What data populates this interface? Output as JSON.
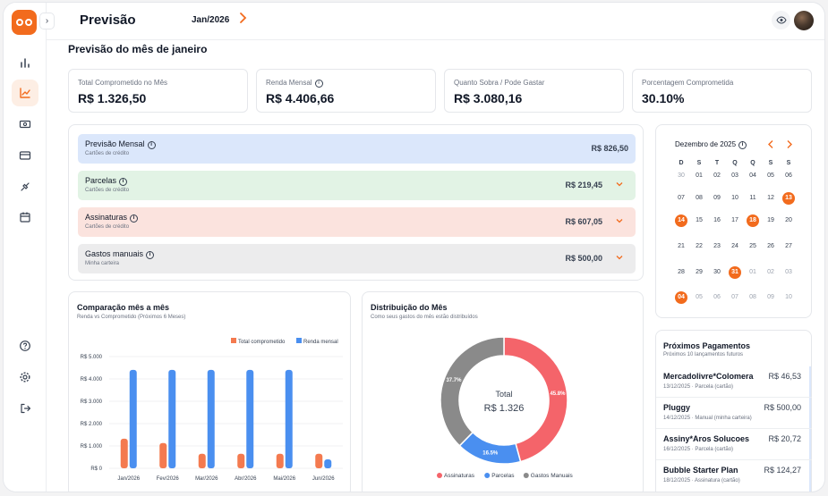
{
  "header": {
    "title": "Previsão",
    "month": "Jan/2026"
  },
  "page_title": "Previsão do mês de janeiro",
  "kpis": [
    {
      "label": "Total Comprometido no Mês",
      "value": "R$ 1.326,50"
    },
    {
      "label": "Renda Mensal",
      "value": "R$ 4.406,66"
    },
    {
      "label": "Quanto Sobra / Pode Gastar",
      "value": "R$ 3.080,16"
    },
    {
      "label": "Porcentagem Comprometida",
      "value": "30.10%"
    }
  ],
  "forecast": [
    {
      "title": "Previsão Mensal",
      "sub": "Cartões de crédito",
      "amount": "R$ 826,50",
      "color": "#dbe7fb"
    },
    {
      "title": "Parcelas",
      "sub": "Cartões de crédito",
      "amount": "R$ 219,45",
      "color": "#e2f3e5"
    },
    {
      "title": "Assinaturas",
      "sub": "Cartões de crédito",
      "amount": "R$ 607,05",
      "color": "#fbe3de"
    },
    {
      "title": "Gastos manuais",
      "sub": "Minha carteira",
      "amount": "R$ 500,00",
      "color": "#ececed"
    }
  ],
  "comparison": {
    "title": "Comparação mês a mês",
    "subtitle": "Renda vs Comprometido (Próximos 6 Meses)"
  },
  "distribution": {
    "title": "Distribuição do Mês",
    "subtitle": "Como seus gastos do mês estão distribuídos",
    "center_label": "Total",
    "center_value": "R$ 1.326"
  },
  "chart_data": [
    {
      "type": "bar",
      "categories": [
        "Jan/2026",
        "Fev/2026",
        "Mar/2026",
        "Abr/2026",
        "Mai/2026",
        "Jun/2026"
      ],
      "series": [
        {
          "name": "Total comprometido",
          "color": "#f47a4f",
          "values": [
            1326.5,
            1130,
            650,
            650,
            650,
            650
          ]
        },
        {
          "name": "Renda mensal",
          "color": "#4a8ff0",
          "values": [
            4406.66,
            4406.66,
            4406.66,
            4406.66,
            4406.66,
            400
          ]
        }
      ],
      "y_ticks": [
        "R$ 5.000",
        "R$ 4.000",
        "R$ 3.000",
        "R$ 2.000",
        "R$ 1.000",
        "R$ 0"
      ],
      "ylim": [
        0,
        5000
      ],
      "grid": true,
      "legend": "top-right"
    },
    {
      "type": "pie",
      "slices": [
        {
          "name": "Assinaturas",
          "value": 45.8,
          "label": "45.8%",
          "color": "#f4646a"
        },
        {
          "name": "Parcelas",
          "value": 16.5,
          "label": "16.5%",
          "color": "#4a8ff0"
        },
        {
          "name": "Gastos Manuais",
          "value": 37.7,
          "label": "37.7%",
          "color": "#8a8a8a"
        }
      ],
      "legend": "bottom"
    }
  ],
  "calendar": {
    "title": "Dezembro de 2025",
    "weekdays": [
      "D",
      "S",
      "T",
      "Q",
      "Q",
      "S",
      "S"
    ],
    "weeks": [
      [
        {
          "d": "30",
          "m": true
        },
        {
          "d": "01"
        },
        {
          "d": "02"
        },
        {
          "d": "03"
        },
        {
          "d": "04"
        },
        {
          "d": "05"
        },
        {
          "d": "06"
        }
      ],
      [
        {
          "d": "07"
        },
        {
          "d": "08"
        },
        {
          "d": "09"
        },
        {
          "d": "10"
        },
        {
          "d": "11"
        },
        {
          "d": "12"
        },
        {
          "d": "13",
          "x": true
        }
      ],
      [
        {
          "d": "14",
          "x": true
        },
        {
          "d": "15"
        },
        {
          "d": "16"
        },
        {
          "d": "17"
        },
        {
          "d": "18",
          "x": true
        },
        {
          "d": "19"
        },
        {
          "d": "20"
        }
      ],
      [
        {
          "d": "21"
        },
        {
          "d": "22"
        },
        {
          "d": "23"
        },
        {
          "d": "24"
        },
        {
          "d": "25"
        },
        {
          "d": "26"
        },
        {
          "d": "27"
        }
      ],
      [
        {
          "d": "28"
        },
        {
          "d": "29"
        },
        {
          "d": "30"
        },
        {
          "d": "31",
          "x": true
        },
        {
          "d": "01",
          "m": true
        },
        {
          "d": "02",
          "m": true
        },
        {
          "d": "03",
          "m": true
        }
      ],
      [
        {
          "d": "04",
          "x": true
        },
        {
          "d": "05",
          "m": true
        },
        {
          "d": "06",
          "m": true
        },
        {
          "d": "07",
          "m": true
        },
        {
          "d": "08",
          "m": true
        },
        {
          "d": "09",
          "m": true
        },
        {
          "d": "10",
          "m": true
        }
      ]
    ]
  },
  "payments": {
    "title": "Próximos Pagamentos",
    "subtitle": "Próximos 10 lançamentos futuros",
    "items": [
      {
        "name": "Mercadolivre*Colomera",
        "detail": "13/12/2025 · Parcela (cartão)",
        "value": "R$ 46,53"
      },
      {
        "name": "Pluggy",
        "detail": "14/12/2025 · Manual (minha carteira)",
        "value": "R$ 500,00"
      },
      {
        "name": "Assiny*Aros Solucoes",
        "detail": "16/12/2025 · Parcela (cartão)",
        "value": "R$ 20,72"
      },
      {
        "name": "Bubble Starter Plan",
        "detail": "18/12/2025 · Assinatura (cartão)",
        "value": "R$ 124,27"
      }
    ]
  }
}
